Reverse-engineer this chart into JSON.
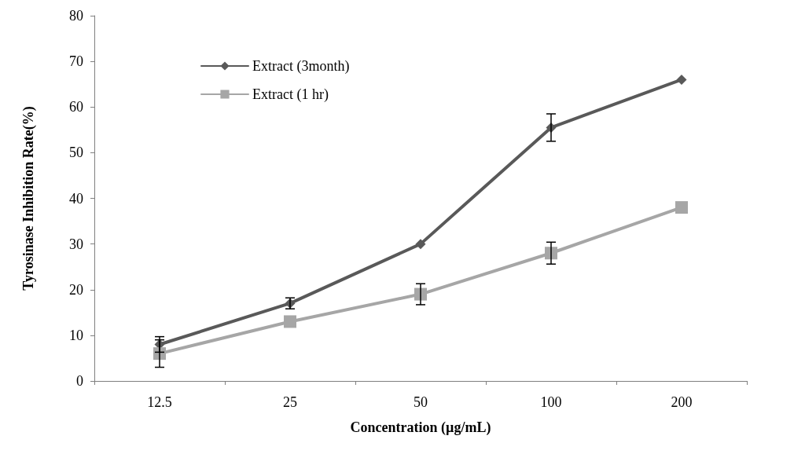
{
  "chart_data": {
    "type": "line",
    "xlabel": "Concentration (µg/mL)",
    "ylabel": "Tyrosinase Inhibition Rate(%)",
    "categories": [
      "12.5",
      "25",
      "50",
      "100",
      "200"
    ],
    "series": [
      {
        "name": "Extract (3month)",
        "color": "#595959",
        "marker": "diamond",
        "values": [
          8,
          17,
          30,
          55.5,
          66
        ],
        "errors": [
          1.7,
          1.2,
          null,
          3,
          null
        ]
      },
      {
        "name": "Extract (1 hr)",
        "color": "#a6a6a6",
        "marker": "square",
        "values": [
          6,
          13,
          19,
          28,
          38
        ],
        "errors": [
          3,
          null,
          2.3,
          2.4,
          null
        ]
      }
    ],
    "ylim": [
      0,
      80
    ],
    "yticks": [
      0,
      10,
      20,
      30,
      40,
      50,
      60,
      70,
      80
    ],
    "grid": false,
    "legend": "top left"
  }
}
